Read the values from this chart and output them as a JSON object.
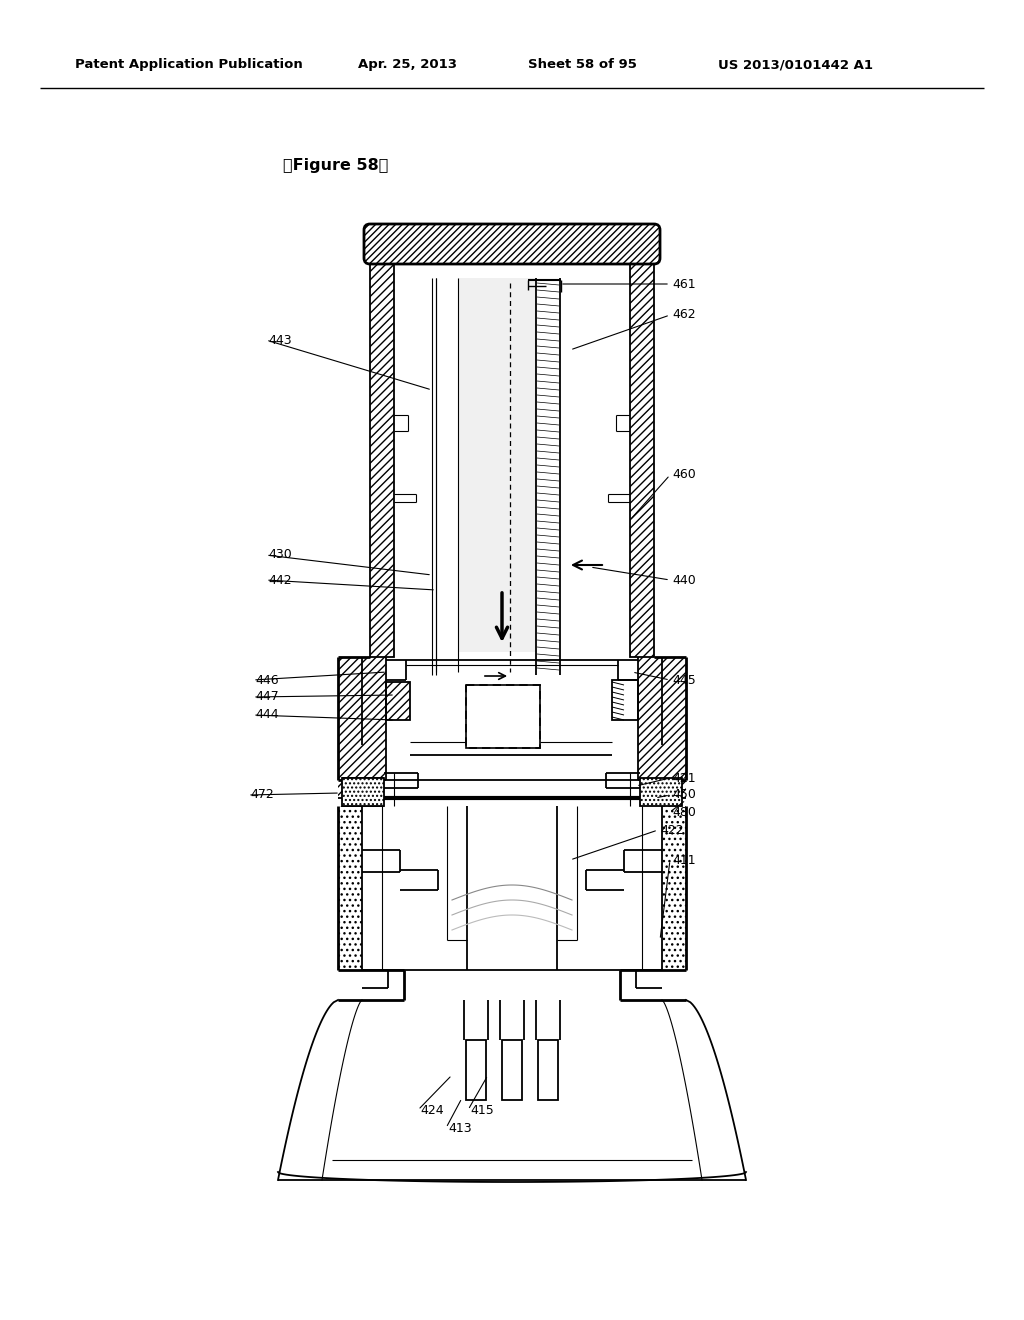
{
  "header_left": "Patent Application Publication",
  "header_mid1": "Apr. 25, 2013",
  "header_mid2": "Sheet 58 of 95",
  "header_right": "US 2013/0101442 A1",
  "figure_label": "【Figure 58】",
  "bg": "#ffffff",
  "black": "#000000",
  "gray_light": "#e8e8e8",
  "gray_mid": "#cccccc"
}
